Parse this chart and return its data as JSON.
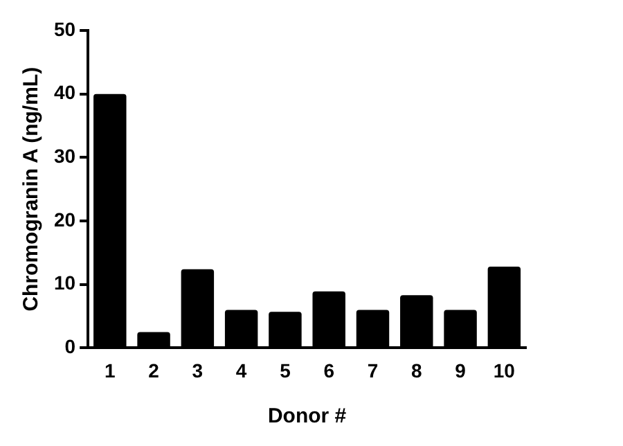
{
  "chart_data": {
    "type": "bar",
    "xlabel": "Donor #",
    "ylabel": "Chromogranin A (ng/mL)",
    "categories": [
      "1",
      "2",
      "3",
      "4",
      "5",
      "6",
      "7",
      "8",
      "9",
      "10"
    ],
    "values": [
      40,
      2.5,
      12.4,
      6,
      5.7,
      8.9,
      6,
      8.3,
      6,
      12.8
    ],
    "color": "#000000",
    "ylim": [
      0,
      50
    ],
    "yticks": [
      0,
      10,
      20,
      30,
      40,
      50
    ],
    "grid": false,
    "legend": false
  }
}
